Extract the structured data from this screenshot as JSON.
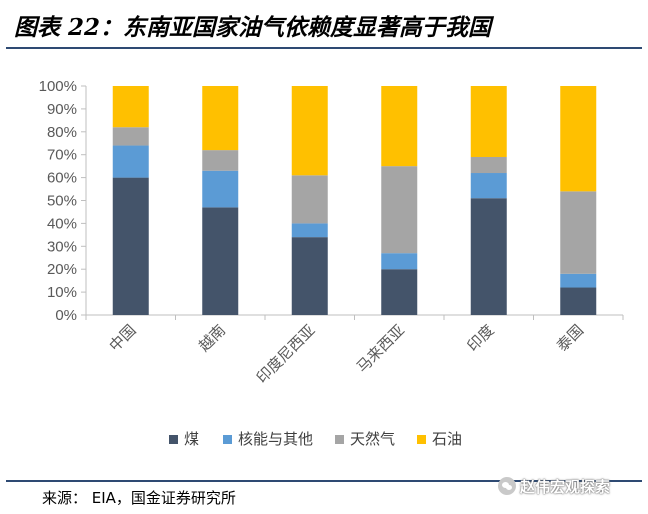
{
  "title": "图表 22：东南亚国家油气依赖度显著高于我国",
  "source": "来源： EIA，国金证券研究所",
  "watermark": "赵伟宏观探索",
  "chart_data": {
    "type": "bar",
    "stacked": true,
    "categories": [
      "中国",
      "越南",
      "印度尼西亚",
      "马来西亚",
      "印度",
      "泰国"
    ],
    "series": [
      {
        "name": "煤",
        "color": "#44546a",
        "values": [
          60,
          47,
          34,
          20,
          51,
          12
        ]
      },
      {
        "name": "核能与其他",
        "color": "#5b9bd5",
        "values": [
          14,
          16,
          6,
          7,
          11,
          6
        ]
      },
      {
        "name": "天然气",
        "color": "#a5a5a5",
        "values": [
          8,
          9,
          21,
          38,
          7,
          36
        ]
      },
      {
        "name": "石油",
        "color": "#ffc000",
        "values": [
          18,
          28,
          39,
          35,
          31,
          46
        ]
      }
    ],
    "yticks": [
      "0%",
      "10%",
      "20%",
      "30%",
      "40%",
      "50%",
      "60%",
      "70%",
      "80%",
      "90%",
      "100%"
    ],
    "ylim": [
      0,
      100
    ],
    "legend_position": "bottom"
  }
}
